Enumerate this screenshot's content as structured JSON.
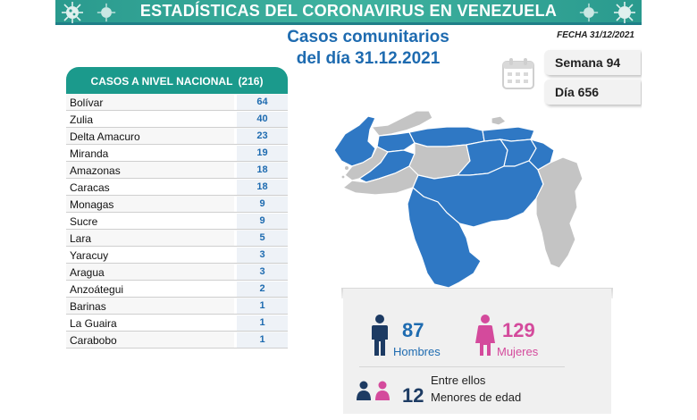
{
  "header": {
    "title": "ESTADÍSTICAS DEL CORONAVIRUS EN VENEZUELA",
    "subtitle_line1": "Casos comunitarios",
    "subtitle_line2": "del día 31.12.2021",
    "fecha": "FECHA 31/12/2021"
  },
  "info": {
    "semana": "Semana 94",
    "dia": "Día 656"
  },
  "table": {
    "title": "CASOS A NIVEL NACIONAL",
    "total": "(216)",
    "rows": [
      {
        "name": "Bolívar",
        "value": "64"
      },
      {
        "name": "Zulia",
        "value": "40"
      },
      {
        "name": "Delta Amacuro",
        "value": "23"
      },
      {
        "name": "Miranda",
        "value": "19"
      },
      {
        "name": "Amazonas",
        "value": "18"
      },
      {
        "name": "Caracas",
        "value": "18"
      },
      {
        "name": "Monagas",
        "value": "9"
      },
      {
        "name": "Sucre",
        "value": "9"
      },
      {
        "name": "Lara",
        "value": "5"
      },
      {
        "name": "Yaracuy",
        "value": "3"
      },
      {
        "name": "Aragua",
        "value": "3"
      },
      {
        "name": "Anzoátegui",
        "value": "2"
      },
      {
        "name": "Barinas",
        "value": "1"
      },
      {
        "name": "La Guaira",
        "value": "1"
      },
      {
        "name": "Carabobo",
        "value": "1"
      }
    ]
  },
  "stats": {
    "hombres_count": "87",
    "hombres_label": "Hombres",
    "mujeres_count": "129",
    "mujeres_label": "Mujeres",
    "entre_ellos": "Entre ellos",
    "menores_count": "12",
    "menores_label": "Menores de edad"
  },
  "colors": {
    "teal": "#1b9a8c",
    "blue": "#1e6bb0",
    "map_blue": "#2f78c4",
    "map_gray": "#c4c4c4",
    "pink": "#d44a9c",
    "navy": "#1d3b63"
  }
}
